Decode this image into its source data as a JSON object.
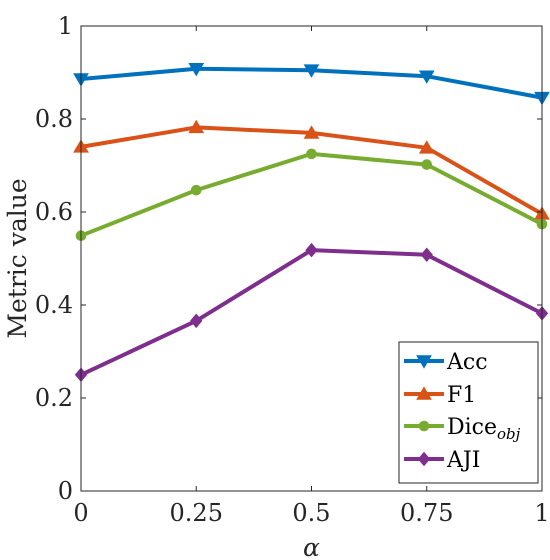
{
  "chart_data": {
    "type": "line",
    "title": "",
    "xlabel": "α",
    "ylabel": "Metric value",
    "x": [
      0,
      0.25,
      0.5,
      0.75,
      1
    ],
    "xticks": [
      "0",
      "0.25",
      "0.5",
      "0.75",
      "1"
    ],
    "yticks": [
      "0",
      "0.2",
      "0.4",
      "0.6",
      "0.8",
      "1"
    ],
    "xlim": [
      0,
      1
    ],
    "ylim": [
      0,
      1
    ],
    "grid": false,
    "legend_position": "bottom-right",
    "series": [
      {
        "name": "Acc",
        "name_sub": "",
        "color": "#0072BD",
        "marker": "triangle-down",
        "values": [
          0.886,
          0.908,
          0.905,
          0.892,
          0.846
        ]
      },
      {
        "name": "F1",
        "name_sub": "",
        "color": "#D95319",
        "marker": "triangle-up",
        "values": [
          0.74,
          0.782,
          0.77,
          0.738,
          0.596
        ]
      },
      {
        "name": "Dice",
        "name_sub": "obj",
        "color": "#77AC30",
        "marker": "circle",
        "values": [
          0.549,
          0.647,
          0.725,
          0.702,
          0.574
        ]
      },
      {
        "name": "AJI",
        "name_sub": "",
        "color": "#7E2F8E",
        "marker": "diamond",
        "values": [
          0.25,
          0.366,
          0.518,
          0.508,
          0.382
        ]
      }
    ]
  }
}
